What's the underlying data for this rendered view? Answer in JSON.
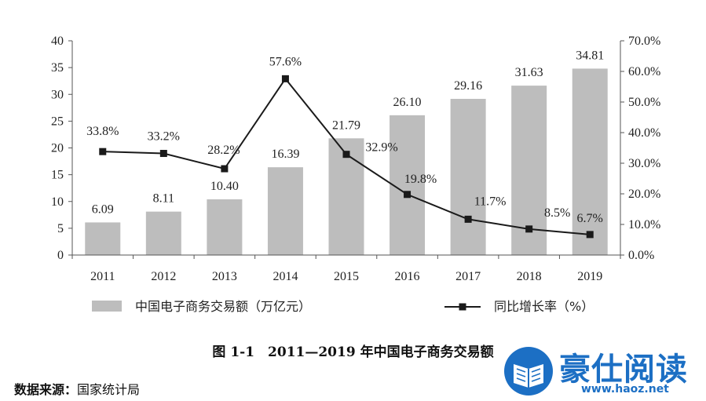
{
  "chart_data": {
    "type": "bar",
    "categories": [
      "2011",
      "2012",
      "2013",
      "2014",
      "2015",
      "2016",
      "2017",
      "2018",
      "2019"
    ],
    "series": [
      {
        "name": "中国电子商务交易额（万亿元）",
        "type": "bar",
        "axis": "left",
        "values": [
          6.09,
          8.11,
          10.4,
          16.39,
          21.79,
          26.1,
          29.16,
          31.63,
          34.81
        ],
        "labels": [
          "6.09",
          "8.11",
          "10.40",
          "16.39",
          "21.79",
          "26.10",
          "29.16",
          "31.63",
          "34.81"
        ],
        "color": "#bdbdbd"
      },
      {
        "name": "同比增长率（%）",
        "type": "line",
        "axis": "right",
        "values": [
          33.8,
          33.2,
          28.2,
          57.6,
          32.9,
          19.8,
          11.7,
          8.5,
          6.7
        ],
        "labels": [
          "33.8%",
          "33.2%",
          "28.2%",
          "57.6%",
          "32.9%",
          "19.8%",
          "11.7%",
          "8.5%",
          "6.7%"
        ],
        "color": "#1a1a1a"
      }
    ],
    "y_left": {
      "lim": [
        0,
        40
      ],
      "ticks": [
        "0",
        "5",
        "10",
        "15",
        "20",
        "25",
        "30",
        "35",
        "40"
      ]
    },
    "y_right": {
      "lim": [
        0,
        70
      ],
      "ticks": [
        "0.0%",
        "10.0%",
        "20.0%",
        "30.0%",
        "40.0%",
        "50.0%",
        "60.0%",
        "70.0%"
      ]
    },
    "grid": false,
    "legend_position": "bottom"
  },
  "caption": "图 1-1　2011—2019 年中国电子商务交易额",
  "source": {
    "label": "数据来源：",
    "value": "国家统计局"
  },
  "watermark": {
    "name": "豪仕阅读",
    "url": "www.haoz.net"
  }
}
